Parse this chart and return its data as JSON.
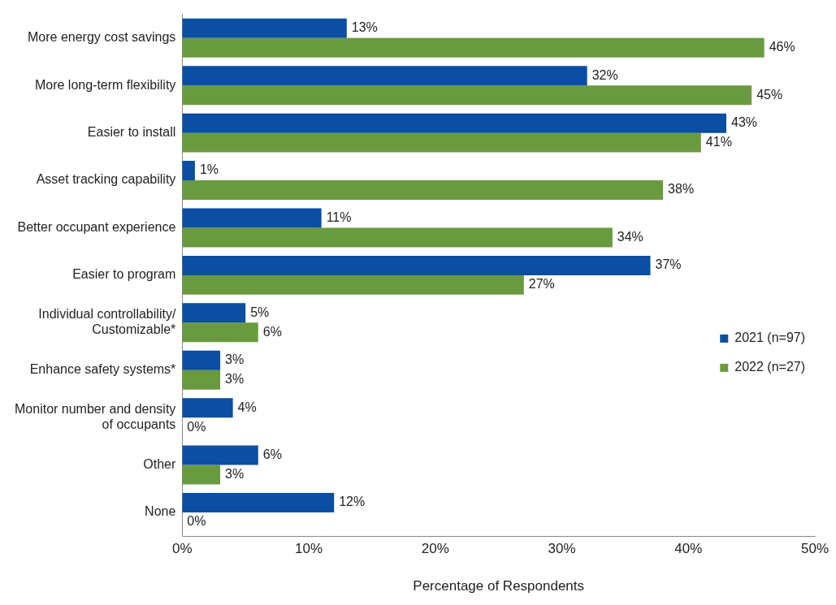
{
  "chart_data": {
    "type": "bar",
    "orientation": "horizontal",
    "xlabel": "Percentage of Respondents",
    "categories": [
      "More energy cost savings",
      "More long-term flexibility",
      "Easier to install",
      "Asset tracking capability",
      "Better occupant experience",
      "Easier to program",
      "Individual controllability/ Customizable*",
      "Enhance safety systems*",
      "Monitor number and density of occupants",
      "Other",
      "None"
    ],
    "series": [
      {
        "name": "2021 (n=97)",
        "color": "#0b4ea2",
        "values": [
          13,
          32,
          43,
          1,
          11,
          37,
          5,
          3,
          4,
          6,
          12
        ],
        "value_labels": [
          "13%",
          "32%",
          "43%",
          "1%",
          "11%",
          "37%",
          "5%",
          "3%",
          "4%",
          "6%",
          "12%"
        ]
      },
      {
        "name": "2022 (n=27)",
        "color": "#6a9a3f",
        "values": [
          46,
          45,
          41,
          38,
          34,
          27,
          6,
          3,
          0,
          3,
          0
        ],
        "value_labels": [
          "46%",
          "45%",
          "41%",
          "38%",
          "34%",
          "27%",
          "6%",
          "3%",
          "0%",
          "3%",
          "0%"
        ]
      }
    ],
    "xlim": [
      0,
      50
    ],
    "xticks": [
      {
        "value": 0,
        "label": "0%"
      },
      {
        "value": 10,
        "label": "10%"
      },
      {
        "value": 20,
        "label": "20%"
      },
      {
        "value": 30,
        "label": "30%"
      },
      {
        "value": 40,
        "label": "40%"
      },
      {
        "value": 50,
        "label": "50%"
      }
    ],
    "grid": false,
    "legend": "right"
  }
}
